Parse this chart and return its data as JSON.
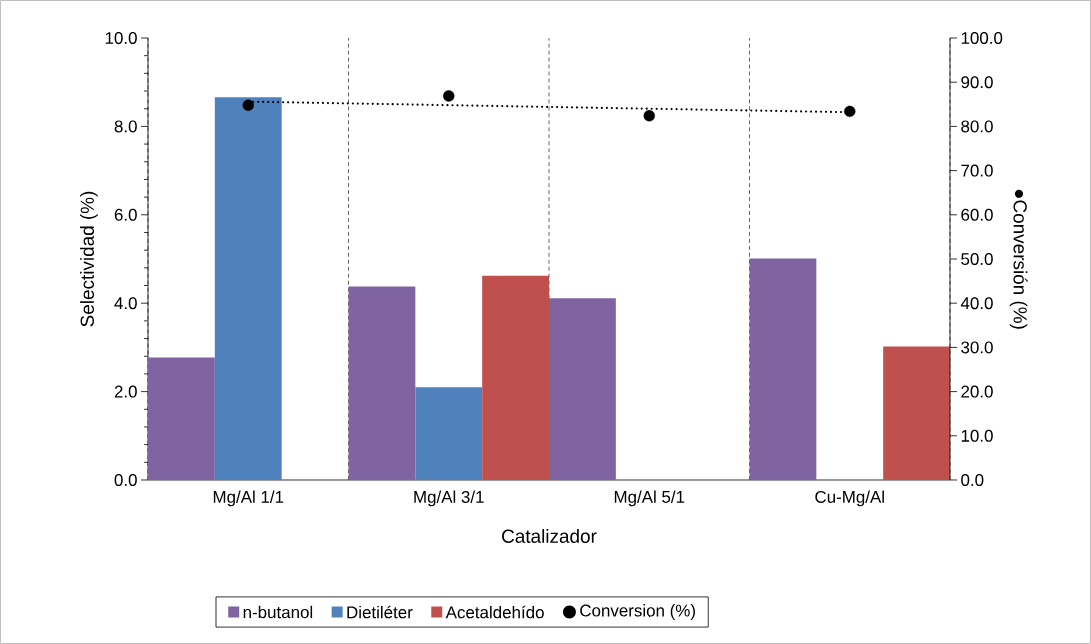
{
  "chart_data": {
    "type": "bar",
    "xlabel": "Catalizador",
    "ylabel": "Selectividad (%)",
    "y2label": "●Conversión (%)",
    "categories": [
      "Mg/Al 1/1",
      "Mg/Al 3/1",
      "Mg/Al 5/1",
      "Cu-Mg/Al"
    ],
    "series": [
      {
        "name": "n-butanol",
        "color": "#8064a2",
        "values": [
          2.77,
          4.38,
          4.11,
          5.01
        ]
      },
      {
        "name": "Dietiléter",
        "color": "#4f81bd",
        "values": [
          8.66,
          2.1,
          null,
          null
        ]
      },
      {
        "name": "Acetaldehído",
        "color": "#c0504d",
        "values": [
          null,
          4.62,
          null,
          3.02
        ]
      },
      {
        "name": "Conversion (%)",
        "type": "scatter",
        "axis": "y2",
        "color": "#000000",
        "marker": "circle",
        "values": [
          84.8,
          86.9,
          82.4,
          83.4
        ]
      },
      {
        "type": "line",
        "axis": "y2",
        "color": "#000000",
        "line_style": "dotted",
        "x": [
          "Mg/Al 1/1",
          "Cu-Mg/Al"
        ],
        "values": [
          85.6,
          83.2
        ]
      }
    ],
    "ylim": [
      0,
      10
    ],
    "yticks": [
      {
        "value": 0,
        "label": "0.0"
      },
      {
        "value": 2,
        "label": "2.0"
      },
      {
        "value": 4,
        "label": "4.0"
      },
      {
        "value": 6,
        "label": "6.0"
      },
      {
        "value": 8,
        "label": "8.0"
      },
      {
        "value": 10,
        "label": "10.0"
      }
    ],
    "y2lim": [
      0,
      100
    ],
    "y2ticks": [
      {
        "value": 0,
        "label": "0.0"
      },
      {
        "value": 10,
        "label": "10.0"
      },
      {
        "value": 20,
        "label": "20.0"
      },
      {
        "value": 30,
        "label": "30.0"
      },
      {
        "value": 40,
        "label": "40.0"
      },
      {
        "value": 50,
        "label": "50.0"
      },
      {
        "value": 60,
        "label": "60.0"
      },
      {
        "value": 70,
        "label": "70.0"
      },
      {
        "value": 80,
        "label": "80.0"
      },
      {
        "value": 90,
        "label": "90.0"
      },
      {
        "value": 100,
        "label": "100.0"
      }
    ],
    "grid": "x",
    "legend": "bottom"
  }
}
